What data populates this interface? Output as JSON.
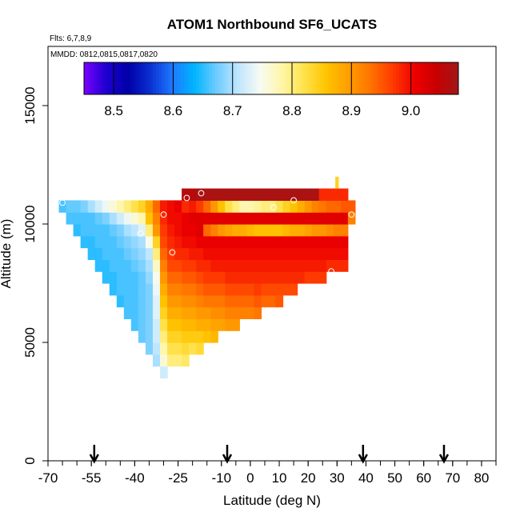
{
  "chart_data": {
    "type": "heatmap",
    "title": "ATOM1 Northbound SF6_UCATS",
    "subtitle_flights": "Flts: 6,7,8,9",
    "subtitle_dates": "MMDD: 0812,0815,0817,0820",
    "xlabel": "Latitude (deg N)",
    "ylabel": "Altitude (m)",
    "xlim": [
      -70,
      85
    ],
    "ylim": [
      0,
      17500
    ],
    "x_ticks": [
      -70,
      -55,
      -40,
      -25,
      -10,
      0,
      10,
      20,
      30,
      40,
      50,
      60,
      70,
      80
    ],
    "x_tick_labels": [
      "-70",
      "-55",
      "-40",
      "-25",
      "-10",
      "0",
      "10",
      "20",
      "30",
      "40",
      "50",
      "60",
      "70",
      "80"
    ],
    "y_ticks": [
      0,
      5000,
      10000,
      15000
    ],
    "y_tick_labels": [
      "0",
      "5000",
      "10000",
      "15000"
    ],
    "colorbar": {
      "min": 8.45,
      "max": 9.08,
      "ticks": [
        8.5,
        8.6,
        8.7,
        8.8,
        8.9,
        9.0
      ],
      "tick_labels": [
        "8.5",
        "8.6",
        "8.7",
        "8.8",
        "8.9",
        "9.0"
      ],
      "colors": [
        "#7a00ff",
        "#1e00d0",
        "#0000a8",
        "#0a2fd0",
        "#1e78ff",
        "#00b4ff",
        "#6ccbff",
        "#bfe6ff",
        "#f7fbf2",
        "#fff6a8",
        "#ffe24a",
        "#ffc400",
        "#ff9e00",
        "#ff7400",
        "#ff3c00",
        "#ee0000",
        "#c80000",
        "#a01818"
      ]
    },
    "arrows_latitude": [
      -54,
      -8,
      39,
      67
    ],
    "cell_width_deg": 2.5,
    "cell_height_m": 500,
    "columns": [
      {
        "lat": -65.0,
        "alt_min": 10500,
        "alt_max": 11000,
        "values": [
          8.66
        ]
      },
      {
        "lat": -62.5,
        "alt_min": 10000,
        "alt_max": 11000,
        "values": [
          8.66,
          8.67
        ]
      },
      {
        "lat": -60.0,
        "alt_min": 9500,
        "alt_max": 11000,
        "values": [
          8.65,
          8.66,
          8.67
        ]
      },
      {
        "lat": -57.5,
        "alt_min": 9000,
        "alt_max": 11000,
        "values": [
          8.65,
          8.66,
          8.66,
          8.68
        ]
      },
      {
        "lat": -55.0,
        "alt_min": 8500,
        "alt_max": 11000,
        "values": [
          8.65,
          8.65,
          8.66,
          8.66,
          8.7
        ]
      },
      {
        "lat": -52.5,
        "alt_min": 8000,
        "alt_max": 11000,
        "values": [
          8.65,
          8.65,
          8.66,
          8.66,
          8.67,
          8.72
        ]
      },
      {
        "lat": -50.0,
        "alt_min": 7500,
        "alt_max": 11000,
        "values": [
          8.65,
          8.65,
          8.66,
          8.66,
          8.66,
          8.68,
          8.74
        ]
      },
      {
        "lat": -47.5,
        "alt_min": 7000,
        "alt_max": 11000,
        "values": [
          8.65,
          8.65,
          8.66,
          8.66,
          8.66,
          8.67,
          8.7,
          8.76
        ]
      },
      {
        "lat": -45.0,
        "alt_min": 6500,
        "alt_max": 11000,
        "values": [
          8.65,
          8.66,
          8.66,
          8.66,
          8.66,
          8.67,
          8.68,
          8.72,
          8.78
        ]
      },
      {
        "lat": -42.5,
        "alt_min": 6000,
        "alt_max": 11000,
        "values": [
          8.66,
          8.66,
          8.66,
          8.66,
          8.66,
          8.67,
          8.68,
          8.7,
          8.74,
          8.8
        ]
      },
      {
        "lat": -40.0,
        "alt_min": 5500,
        "alt_max": 11000,
        "values": [
          8.66,
          8.66,
          8.66,
          8.66,
          8.66,
          8.67,
          8.68,
          8.69,
          8.71,
          8.76,
          8.82
        ]
      },
      {
        "lat": -37.5,
        "alt_min": 5000,
        "alt_max": 11000,
        "values": [
          8.67,
          8.67,
          8.67,
          8.67,
          8.67,
          8.67,
          8.68,
          8.69,
          8.7,
          8.73,
          8.78,
          8.84
        ]
      },
      {
        "lat": -35.0,
        "alt_min": 4500,
        "alt_max": 11000,
        "values": [
          8.68,
          8.68,
          8.68,
          8.68,
          8.68,
          8.68,
          8.69,
          8.7,
          8.71,
          8.75,
          8.8,
          8.86,
          8.88
        ]
      },
      {
        "lat": -32.5,
        "alt_min": 4000,
        "alt_max": 11000,
        "values": [
          8.7,
          8.71,
          8.72,
          8.72,
          8.73,
          8.73,
          8.74,
          8.75,
          8.77,
          8.8,
          8.84,
          8.9,
          8.92,
          8.94
        ]
      },
      {
        "lat": -30.0,
        "alt_min": 3500,
        "alt_max": 11000,
        "values": [
          8.72,
          8.76,
          8.78,
          8.8,
          8.82,
          8.84,
          8.86,
          8.88,
          8.9,
          8.92,
          8.94,
          8.96,
          8.97,
          8.98,
          8.99
        ]
      },
      {
        "lat": -27.5,
        "alt_min": 4000,
        "alt_max": 11000,
        "values": [
          8.8,
          8.82,
          8.84,
          8.86,
          8.88,
          8.9,
          8.92,
          8.94,
          8.96,
          8.97,
          8.98,
          8.99,
          9.0,
          9.0
        ]
      },
      {
        "lat": -25.0,
        "alt_min": 4000,
        "alt_max": 11000,
        "values": [
          8.8,
          8.82,
          8.84,
          8.86,
          8.88,
          8.9,
          8.92,
          8.94,
          8.96,
          8.98,
          8.99,
          9.0,
          9.0,
          9.01
        ]
      },
      {
        "lat": -22.5,
        "alt_min": 4000,
        "alt_max": 11500,
        "values": [
          8.81,
          8.83,
          8.85,
          8.87,
          8.89,
          8.91,
          8.93,
          8.95,
          8.97,
          8.98,
          9.0,
          9.01,
          9.01,
          8.98,
          9.06
        ]
      },
      {
        "lat": -20.0,
        "alt_min": 4500,
        "alt_max": 11500,
        "values": [
          8.82,
          8.85,
          8.87,
          8.89,
          8.91,
          8.93,
          8.95,
          8.97,
          8.99,
          9.0,
          9.01,
          9.02,
          8.99,
          9.06
        ]
      },
      {
        "lat": -17.5,
        "alt_min": 4500,
        "alt_max": 11500,
        "values": [
          8.83,
          8.85,
          8.88,
          8.9,
          8.92,
          8.94,
          8.96,
          8.98,
          8.99,
          9.01,
          9.02,
          9.02,
          8.97,
          9.07
        ]
      },
      {
        "lat": -15.0,
        "alt_min": 5000,
        "alt_max": 11500,
        "values": [
          8.86,
          8.88,
          8.9,
          8.93,
          8.95,
          8.97,
          8.98,
          9.0,
          9.01,
          8.94,
          9.02,
          8.94,
          9.07
        ]
      },
      {
        "lat": -12.5,
        "alt_min": 5000,
        "alt_max": 11500,
        "values": [
          8.87,
          8.89,
          8.91,
          8.93,
          8.95,
          8.97,
          8.99,
          9.0,
          9.01,
          8.92,
          9.02,
          8.9,
          9.07
        ]
      },
      {
        "lat": -10.0,
        "alt_min": 5500,
        "alt_max": 11500,
        "values": [
          8.89,
          8.91,
          8.93,
          8.95,
          8.97,
          8.99,
          9.0,
          9.01,
          8.9,
          9.02,
          8.86,
          9.07
        ]
      },
      {
        "lat": -7.5,
        "alt_min": 5500,
        "alt_max": 11500,
        "values": [
          8.9,
          8.92,
          8.94,
          8.96,
          8.98,
          8.99,
          9.0,
          9.01,
          8.89,
          9.02,
          8.82,
          9.07
        ]
      },
      {
        "lat": -5.0,
        "alt_min": 5500,
        "alt_max": 11500,
        "values": [
          8.9,
          8.92,
          8.94,
          8.96,
          8.98,
          8.99,
          9.0,
          9.01,
          8.88,
          9.02,
          8.8,
          9.07
        ]
      },
      {
        "lat": -2.5,
        "alt_min": 6000,
        "alt_max": 11500,
        "values": [
          8.92,
          8.94,
          8.96,
          8.98,
          8.99,
          9.0,
          9.01,
          8.88,
          9.02,
          8.78,
          9.07
        ]
      },
      {
        "lat": 0.0,
        "alt_min": 6000,
        "alt_max": 11500,
        "values": [
          8.92,
          8.94,
          8.96,
          8.98,
          8.99,
          9.0,
          9.01,
          8.87,
          9.02,
          8.78,
          9.07
        ]
      },
      {
        "lat": 2.5,
        "alt_min": 6000,
        "alt_max": 11500,
        "values": [
          8.93,
          8.95,
          8.97,
          8.98,
          8.99,
          9.0,
          9.01,
          8.86,
          9.02,
          8.79,
          9.07
        ]
      },
      {
        "lat": 5.0,
        "alt_min": 6500,
        "alt_max": 11500,
        "values": [
          8.94,
          8.96,
          8.98,
          8.99,
          9.0,
          9.01,
          8.86,
          9.02,
          8.8,
          9.07
        ]
      },
      {
        "lat": 7.5,
        "alt_min": 6500,
        "alt_max": 11500,
        "values": [
          8.94,
          8.96,
          8.98,
          8.99,
          9.0,
          9.01,
          8.86,
          9.02,
          8.8,
          9.07
        ]
      },
      {
        "lat": 10.0,
        "alt_min": 6500,
        "alt_max": 11500,
        "values": [
          8.95,
          8.96,
          8.98,
          8.99,
          9.0,
          9.01,
          8.86,
          9.02,
          8.82,
          9.07
        ]
      },
      {
        "lat": 12.5,
        "alt_min": 7000,
        "alt_max": 11500,
        "values": [
          8.96,
          8.98,
          8.99,
          9.0,
          9.01,
          8.87,
          9.02,
          8.84,
          9.07
        ]
      },
      {
        "lat": 15.0,
        "alt_min": 7000,
        "alt_max": 11500,
        "values": [
          8.96,
          8.98,
          8.99,
          9.0,
          9.01,
          8.88,
          9.02,
          8.86,
          9.07
        ]
      },
      {
        "lat": 17.5,
        "alt_min": 7500,
        "alt_max": 11500,
        "values": [
          8.98,
          8.99,
          9.0,
          9.01,
          8.88,
          9.02,
          8.88,
          9.07
        ]
      },
      {
        "lat": 20.0,
        "alt_min": 7500,
        "alt_max": 11500,
        "values": [
          8.97,
          8.99,
          9.0,
          9.01,
          8.89,
          9.02,
          8.9,
          9.07
        ]
      },
      {
        "lat": 22.5,
        "alt_min": 7500,
        "alt_max": 11500,
        "values": [
          8.97,
          8.99,
          9.0,
          9.01,
          8.9,
          9.02,
          8.92,
          9.07
        ]
      },
      {
        "lat": 25.0,
        "alt_min": 7500,
        "alt_max": 11500,
        "values": [
          8.97,
          8.99,
          9.0,
          9.01,
          8.9,
          9.02,
          8.93,
          8.98
        ]
      },
      {
        "lat": 27.5,
        "alt_min": 8000,
        "alt_max": 11500,
        "values": [
          8.98,
          9.0,
          9.01,
          8.91,
          9.02,
          8.94,
          8.98
        ]
      },
      {
        "lat": 30.0,
        "alt_min": 8000,
        "alt_max": 11500,
        "values": [
          8.98,
          9.0,
          9.01,
          8.92,
          9.02,
          8.94,
          8.98
        ]
      },
      {
        "lat": 32.5,
        "alt_min": 8000,
        "alt_max": 11500,
        "values": [
          8.98,
          9.0,
          9.01,
          8.92,
          9.02,
          8.95,
          8.98
        ]
      },
      {
        "lat": 35.0,
        "alt_min": 10000,
        "alt_max": 11000,
        "values": [
          8.92,
          8.95
        ]
      }
    ],
    "extra_cells": [
      {
        "lat": 30.0,
        "alt_min": 11500,
        "alt_max": 12000,
        "value": 8.84
      }
    ],
    "markers": [
      {
        "lat": -65.0,
        "alt": 10900
      },
      {
        "lat": -38.0,
        "alt": 9600
      },
      {
        "lat": -30.0,
        "alt": 10400
      },
      {
        "lat": -27.0,
        "alt": 8800
      },
      {
        "lat": -22.0,
        "alt": 11100
      },
      {
        "lat": -17.0,
        "alt": 11300
      },
      {
        "lat": 8.0,
        "alt": 10700
      },
      {
        "lat": 15.0,
        "alt": 11000
      },
      {
        "lat": 28.0,
        "alt": 8000
      },
      {
        "lat": 35.0,
        "alt": 10400
      }
    ]
  }
}
